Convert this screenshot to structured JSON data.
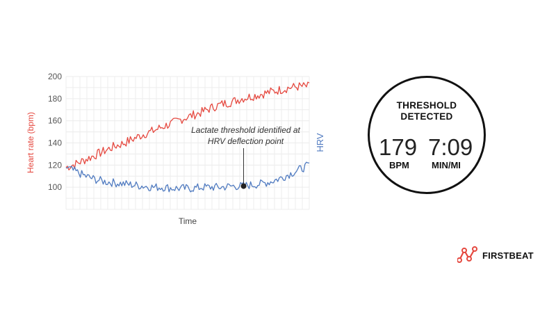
{
  "chart_data": {
    "type": "line",
    "xlabel": "Time",
    "ylabel": "Heart rate (bpm)",
    "y2label": "HRV",
    "ylim": [
      80,
      200
    ],
    "yticks": [
      100,
      120,
      140,
      160,
      180,
      200
    ],
    "grid": true,
    "annotation": {
      "lines": [
        "Lactate threshold identified at",
        "HRV deflection point"
      ],
      "marker": {
        "x": 0.73,
        "y": 101
      }
    },
    "series": [
      {
        "name": "Heart rate",
        "color": "#e5483f",
        "x": [
          0,
          0.04,
          0.08,
          0.12,
          0.16,
          0.2,
          0.24,
          0.28,
          0.32,
          0.36,
          0.4,
          0.44,
          0.48,
          0.52,
          0.56,
          0.6,
          0.64,
          0.68,
          0.72,
          0.76,
          0.8,
          0.84,
          0.88,
          0.92,
          0.96,
          1.0
        ],
        "values": [
          118,
          121,
          125,
          129,
          133,
          137,
          140,
          144,
          148,
          151,
          155,
          158,
          162,
          165,
          168,
          172,
          175,
          177,
          180,
          182,
          184,
          186,
          188,
          190,
          191,
          191
        ]
      },
      {
        "name": "HRV",
        "color": "#4f7ac0",
        "x": [
          0,
          0.04,
          0.08,
          0.12,
          0.16,
          0.2,
          0.24,
          0.28,
          0.32,
          0.36,
          0.4,
          0.44,
          0.48,
          0.52,
          0.56,
          0.6,
          0.64,
          0.68,
          0.72,
          0.76,
          0.8,
          0.84,
          0.88,
          0.92,
          0.96,
          1.0
        ],
        "values": [
          118,
          114,
          110,
          107,
          105,
          104,
          103,
          102,
          101,
          100,
          100,
          99,
          99,
          99,
          100,
          100,
          100,
          101,
          101,
          102,
          103,
          105,
          108,
          112,
          116,
          120
        ]
      }
    ]
  },
  "watch": {
    "title_line1": "THRESHOLD",
    "title_line2": "DETECTED",
    "hr_value": "179",
    "hr_unit": "BPM",
    "pace_value": "7:09",
    "pace_unit": "MIN/MI"
  },
  "logo": {
    "text": "FIRSTBEAT",
    "icon": "firstbeat-logo-icon",
    "color": "#e5483f"
  }
}
